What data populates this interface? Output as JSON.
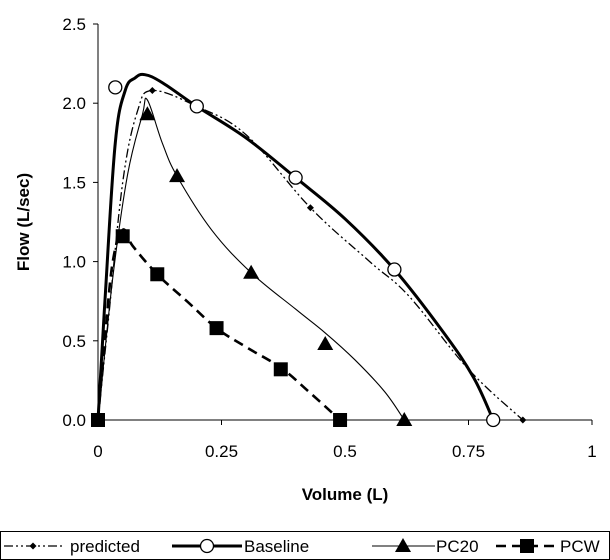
{
  "chart_data": {
    "type": "line",
    "title": "",
    "xlabel": "Volume (L)",
    "ylabel": "Flow (L/sec)",
    "xlim": [
      0,
      1
    ],
    "ylim": [
      0,
      2.5
    ],
    "x_ticks": [
      "0",
      "0.25",
      "0.5",
      "0.75",
      "1"
    ],
    "y_ticks": [
      "0.0",
      "0.5",
      "1.0",
      "1.5",
      "2.0",
      "2.5"
    ],
    "grid": false,
    "legend_position": "bottom",
    "series": [
      {
        "name": "predicted",
        "style": "dash-dot-dot",
        "marker": "small-diamond",
        "color": "#000000",
        "curve": [
          [
            0,
            0
          ],
          [
            0.02,
            0.6
          ],
          [
            0.05,
            1.5
          ],
          [
            0.08,
            1.95
          ],
          [
            0.11,
            2.08
          ],
          [
            0.2,
            1.98
          ],
          [
            0.3,
            1.8
          ],
          [
            0.43,
            1.34
          ],
          [
            0.55,
            1.0
          ],
          [
            0.63,
            0.78
          ],
          [
            0.75,
            0.32
          ],
          [
            0.86,
            0
          ]
        ],
        "markers": [
          [
            0,
            0
          ],
          [
            0.11,
            2.08
          ],
          [
            0.43,
            1.34
          ],
          [
            0.86,
            0
          ]
        ]
      },
      {
        "name": "Baseline",
        "style": "solid-thick",
        "marker": "open-circle",
        "color": "#000000",
        "curve": [
          [
            0,
            0
          ],
          [
            0.015,
            0.8
          ],
          [
            0.035,
            1.75
          ],
          [
            0.055,
            2.08
          ],
          [
            0.075,
            2.16
          ],
          [
            0.095,
            2.18
          ],
          [
            0.13,
            2.13
          ],
          [
            0.2,
            1.98
          ],
          [
            0.3,
            1.78
          ],
          [
            0.4,
            1.53
          ],
          [
            0.5,
            1.27
          ],
          [
            0.6,
            0.95
          ],
          [
            0.7,
            0.55
          ],
          [
            0.76,
            0.27
          ],
          [
            0.8,
            0
          ]
        ],
        "markers": [
          [
            0.035,
            2.1
          ],
          [
            0.2,
            1.98
          ],
          [
            0.4,
            1.53
          ],
          [
            0.6,
            0.95
          ],
          [
            0.8,
            0
          ]
        ]
      },
      {
        "name": "PC20",
        "style": "solid-thin",
        "marker": "filled-triangle",
        "color": "#000000",
        "curve": [
          [
            0,
            0
          ],
          [
            0.03,
            0.9
          ],
          [
            0.06,
            1.55
          ],
          [
            0.09,
            1.93
          ],
          [
            0.1,
            2.02
          ],
          [
            0.13,
            1.75
          ],
          [
            0.16,
            1.54
          ],
          [
            0.23,
            1.2
          ],
          [
            0.31,
            0.93
          ],
          [
            0.4,
            0.7
          ],
          [
            0.46,
            0.55
          ],
          [
            0.52,
            0.38
          ],
          [
            0.58,
            0.18
          ],
          [
            0.62,
            0
          ]
        ],
        "markers": [
          [
            0.1,
            1.93
          ],
          [
            0.16,
            1.54
          ],
          [
            0.31,
            0.93
          ],
          [
            0.46,
            0.48
          ],
          [
            0.62,
            0
          ]
        ]
      },
      {
        "name": "PCW",
        "style": "dashed-thick",
        "marker": "filled-square",
        "color": "#000000",
        "curve": [
          [
            0,
            0
          ],
          [
            0.015,
            0.55
          ],
          [
            0.03,
            1.0
          ],
          [
            0.05,
            1.2
          ],
          [
            0.07,
            1.1
          ],
          [
            0.12,
            0.92
          ],
          [
            0.18,
            0.75
          ],
          [
            0.24,
            0.58
          ],
          [
            0.3,
            0.46
          ],
          [
            0.37,
            0.33
          ],
          [
            0.43,
            0.17
          ],
          [
            0.49,
            0
          ]
        ],
        "markers": [
          [
            0,
            0
          ],
          [
            0.05,
            1.16
          ],
          [
            0.12,
            0.92
          ],
          [
            0.24,
            0.58
          ],
          [
            0.37,
            0.32
          ],
          [
            0.49,
            0
          ]
        ]
      }
    ]
  }
}
